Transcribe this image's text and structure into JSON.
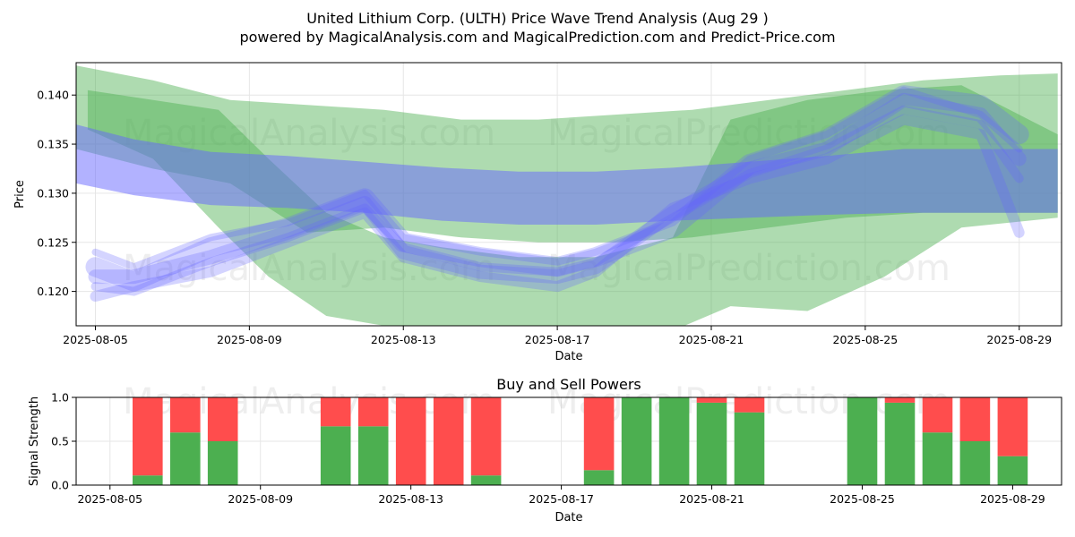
{
  "title_line1": "United Lithium Corp. (ULTH) Price Wave Trend Analysis (Aug 29 )",
  "title_line2": "powered by MagicalAnalysis.com and MagicalPrediction.com and Predict-Price.com",
  "watermarks": [
    "MagicalAnalysis.com",
    "MagicalPrediction.com"
  ],
  "colors": {
    "green_band": "#4caf50",
    "blue_band": "#6666ff",
    "buy": "#4caf50",
    "sell": "#ff4d4d",
    "grid": "#e6e6e6"
  },
  "chart_data": [
    {
      "type": "area",
      "title": "",
      "xlabel": "Date",
      "ylabel": "Price",
      "x_ticks": [
        "2025-08-05",
        "2025-08-09",
        "2025-08-13",
        "2025-08-17",
        "2025-08-21",
        "2025-08-25",
        "2025-08-29"
      ],
      "y_ticks": [
        "0.120",
        "0.125",
        "0.130",
        "0.135",
        "0.140"
      ],
      "ylim": [
        0.1165,
        0.1433
      ],
      "xlim": [
        "2025-08-04.5",
        "2025-08-30.1"
      ],
      "grid": true,
      "series": [
        {
          "color": "green",
          "x": [
            "2025-08-04.5",
            "2025-08-06.5",
            "2025-08-08.5",
            "2025-08-10.5",
            "2025-08-12.5",
            "2025-08-14.5",
            "2025-08-16.5",
            "2025-08-18.5",
            "2025-08-20.5",
            "2025-08-22.5",
            "2025-08-24.5",
            "2025-08-26.5",
            "2025-08-28.5",
            "2025-08-30"
          ],
          "lower": [
            0.1345,
            0.1325,
            0.131,
            0.126,
            0.1265,
            0.1255,
            0.125,
            0.125,
            0.1255,
            0.1265,
            0.1275,
            0.128,
            0.128,
            0.128
          ],
          "upper": [
            0.143,
            0.1415,
            0.1395,
            0.139,
            0.1385,
            0.1375,
            0.1375,
            0.138,
            0.1385,
            0.1395,
            0.1405,
            0.1415,
            0.142,
            0.1422
          ]
        },
        {
          "color": "green",
          "x": [
            "2025-08-04.8",
            "2025-08-06.5",
            "2025-08-08.2",
            "2025-08-09.5",
            "2025-08-11",
            "2025-08-12.5",
            "2025-08-14",
            "2025-08-16",
            "2025-08-18",
            "2025-08-20",
            "2025-08-21.5",
            "2025-08-23.5",
            "2025-08-25.5",
            "2025-08-27.5",
            "2025-08-30"
          ],
          "lower": [
            0.1365,
            0.1335,
            0.1265,
            0.1215,
            0.1175,
            0.1165,
            0.1165,
            0.116,
            0.116,
            0.116,
            0.1185,
            0.118,
            0.1215,
            0.1265,
            0.1275
          ],
          "upper": [
            0.1405,
            0.1395,
            0.1385,
            0.1335,
            0.128,
            0.1255,
            0.1245,
            0.1235,
            0.1235,
            0.1255,
            0.1375,
            0.1395,
            0.1405,
            0.141,
            0.136
          ]
        },
        {
          "color": "blue",
          "x": [
            "2025-08-04.5",
            "2025-08-06",
            "2025-08-08",
            "2025-08-10",
            "2025-08-12",
            "2025-08-14",
            "2025-08-16",
            "2025-08-18",
            "2025-08-20",
            "2025-08-22",
            "2025-08-24",
            "2025-08-26",
            "2025-08-28",
            "2025-08-30"
          ],
          "lower": [
            0.131,
            0.1298,
            0.1288,
            0.1285,
            0.128,
            0.1272,
            0.1268,
            0.1268,
            0.1272,
            0.1275,
            0.1278,
            0.128,
            0.128,
            0.128
          ],
          "upper": [
            0.137,
            0.1355,
            0.1342,
            0.1338,
            0.1332,
            0.1326,
            0.1322,
            0.1322,
            0.1326,
            0.1332,
            0.1338,
            0.1345,
            0.1345,
            0.1345
          ]
        }
      ],
      "wave_lines": [
        {
          "x": [
            "2025-08-05",
            "2025-08-06",
            "2025-08-08",
            "2025-08-10",
            "2025-08-12",
            "2025-08-13",
            "2025-08-15",
            "2025-08-17",
            "2025-08-18",
            "2025-08-20",
            "2025-08-22",
            "2025-08-24",
            "2025-08-26",
            "2025-08-28",
            "2025-08-29"
          ],
          "y": [
            0.1215,
            0.1215,
            0.1235,
            0.126,
            0.129,
            0.124,
            0.122,
            0.1215,
            0.1225,
            0.128,
            0.1325,
            0.1345,
            0.1395,
            0.138,
            0.1335
          ]
        },
        {
          "x": [
            "2025-08-05",
            "2025-08-06",
            "2025-08-08",
            "2025-08-10",
            "2025-08-12",
            "2025-08-13",
            "2025-08-15",
            "2025-08-17",
            "2025-08-18",
            "2025-08-20",
            "2025-08-22",
            "2025-08-24",
            "2025-08-26",
            "2025-08-28",
            "2025-08-29"
          ],
          "y": [
            0.1205,
            0.12,
            0.123,
            0.1255,
            0.1285,
            0.1245,
            0.1225,
            0.122,
            0.123,
            0.1275,
            0.132,
            0.1345,
            0.1385,
            0.137,
            0.1315
          ]
        },
        {
          "x": [
            "2025-08-05",
            "2025-08-06",
            "2025-08-08",
            "2025-08-10",
            "2025-08-12",
            "2025-08-13",
            "2025-08-15",
            "2025-08-17",
            "2025-08-18",
            "2025-08-20",
            "2025-08-22",
            "2025-08-24",
            "2025-08-26",
            "2025-08-28",
            "2025-08-29"
          ],
          "y": [
            0.1225,
            0.121,
            0.1245,
            0.1265,
            0.1295,
            0.125,
            0.1235,
            0.1225,
            0.1235,
            0.1265,
            0.133,
            0.1355,
            0.14,
            0.139,
            0.136
          ]
        },
        {
          "x": [
            "2025-08-05",
            "2025-08-06",
            "2025-08-08",
            "2025-08-10",
            "2025-08-12",
            "2025-08-13",
            "2025-08-15",
            "2025-08-17",
            "2025-08-18",
            "2025-08-20",
            "2025-08-22",
            "2025-08-24",
            "2025-08-26",
            "2025-08-28",
            "2025-08-29"
          ],
          "y": [
            0.1195,
            0.1205,
            0.122,
            0.125,
            0.128,
            0.1235,
            0.1215,
            0.1205,
            0.122,
            0.1285,
            0.1315,
            0.1335,
            0.1375,
            0.136,
            0.126
          ]
        },
        {
          "x": [
            "2025-08-05",
            "2025-08-06",
            "2025-08-08",
            "2025-08-10",
            "2025-08-12",
            "2025-08-13",
            "2025-08-15",
            "2025-08-17",
            "2025-08-18",
            "2025-08-20",
            "2025-08-22",
            "2025-08-24",
            "2025-08-26",
            "2025-08-28",
            "2025-08-29"
          ],
          "y": [
            0.124,
            0.1225,
            0.1255,
            0.127,
            0.13,
            0.1255,
            0.124,
            0.123,
            0.124,
            0.127,
            0.1335,
            0.136,
            0.1405,
            0.138,
            0.1345
          ]
        }
      ]
    },
    {
      "type": "bar",
      "title": "Buy and Sell Powers",
      "xlabel": "Date",
      "ylabel": "Signal Strength",
      "x_ticks": [
        "2025-08-05",
        "2025-08-09",
        "2025-08-13",
        "2025-08-17",
        "2025-08-21",
        "2025-08-25",
        "2025-08-29"
      ],
      "y_ticks": [
        "0.0",
        "0.5",
        "1.0"
      ],
      "ylim": [
        0,
        1
      ],
      "grid": true,
      "categories": [
        "2025-08-06",
        "2025-08-07",
        "2025-08-08",
        "2025-08-11",
        "2025-08-12",
        "2025-08-13",
        "2025-08-14",
        "2025-08-15",
        "2025-08-18",
        "2025-08-19",
        "2025-08-20",
        "2025-08-21",
        "2025-08-22",
        "2025-08-25",
        "2025-08-26",
        "2025-08-27",
        "2025-08-28",
        "2025-08-29"
      ],
      "series": [
        {
          "name": "buy",
          "values": [
            0.11,
            0.6,
            0.5,
            0.67,
            0.67,
            0.0,
            0.0,
            0.11,
            0.17,
            1.0,
            1.0,
            0.94,
            0.83,
            1.0,
            0.94,
            0.6,
            0.5,
            0.33
          ]
        },
        {
          "name": "sell",
          "values": [
            0.89,
            0.4,
            0.5,
            0.33,
            0.33,
            1.0,
            1.0,
            0.89,
            0.83,
            0.0,
            0.0,
            0.06,
            0.17,
            0.0,
            0.06,
            0.4,
            0.5,
            0.67
          ]
        }
      ]
    }
  ]
}
